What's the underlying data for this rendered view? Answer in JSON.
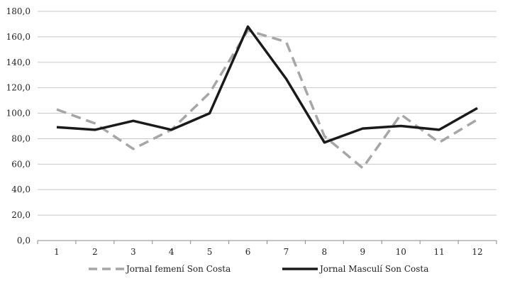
{
  "chart_data": {
    "type": "line",
    "title": "",
    "xlabel": "",
    "ylabel": "",
    "categories": [
      "1",
      "2",
      "3",
      "4",
      "5",
      "6",
      "7",
      "8",
      "9",
      "10",
      "11",
      "12"
    ],
    "yticks": [
      "0,0",
      "20,0",
      "40,0",
      "60,0",
      "80,0",
      "100,0",
      "120,0",
      "140,0",
      "160,0",
      "180,0"
    ],
    "ylim": [
      0,
      180
    ],
    "grid": true,
    "legend_position": "bottom",
    "series": [
      {
        "name": "Jornal femení Son Costa",
        "color": "#a6a6a6",
        "dashed": true,
        "values": [
          103,
          92,
          72,
          87,
          116,
          165,
          156,
          82,
          57,
          99,
          77,
          95
        ]
      },
      {
        "name": "Jornal Masculí Son Costa",
        "color": "#1a1a1a",
        "dashed": false,
        "values": [
          89,
          87,
          94,
          87,
          100,
          168,
          127,
          77,
          88,
          90,
          87,
          104
        ]
      }
    ]
  }
}
